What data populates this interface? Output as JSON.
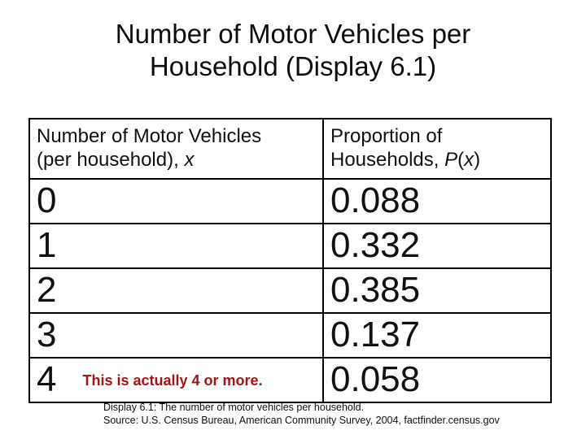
{
  "slide": {
    "title": {
      "line1": "Number of Motor Vehicles per",
      "line2": "Household (Display 6.1)"
    },
    "table": {
      "col1_header": {
        "line1": "Number of Motor Vehicles",
        "line2_text": "(per household), ",
        "line2_var": "x"
      },
      "col2_header": {
        "line1": "Proportion of",
        "line2_text": "Households, ",
        "line2_var_p": "P",
        "line2_paren_open": "(",
        "line2_var_x": "x",
        "line2_paren_close": ")"
      },
      "rows": [
        {
          "x": "0",
          "p": "0.088"
        },
        {
          "x": "1",
          "p": "0.332"
        },
        {
          "x": "2",
          "p": "0.385"
        },
        {
          "x": "3",
          "p": "0.137"
        },
        {
          "x": "4",
          "p": "0.058",
          "note": "This is actually 4 or more."
        }
      ]
    },
    "footer": {
      "line1": "Display 6.1: The number of motor vehicles per household.",
      "line2": "Source: U.S. Census Bureau, American Community Survey, 2004, factfinder.census.gov"
    },
    "colors": {
      "note_red": "#a31515",
      "text": "#111111",
      "border": "#000000",
      "background": "#ffffff"
    }
  },
  "chart_data": {
    "type": "table",
    "title": "Number of Motor Vehicles per Household (Display 6.1)",
    "columns": [
      "Number of Motor Vehicles (per household), x",
      "Proportion of Households, P(x)"
    ],
    "x": [
      0,
      1,
      2,
      3,
      4
    ],
    "P_x": [
      0.088,
      0.332,
      0.385,
      0.137,
      0.058
    ],
    "annotation": "This is actually 4 or more.",
    "caption": [
      "Display 6.1: The number of motor vehicles per household.",
      "Source: U.S. Census Bureau, American Community Survey, 2004, factfinder.census.gov"
    ]
  }
}
